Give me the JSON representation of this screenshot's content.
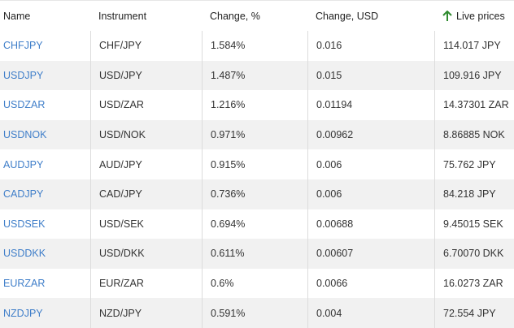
{
  "table": {
    "header": [
      "Name",
      "Instrument",
      "Change, %",
      "Change, USD",
      "Live prices"
    ],
    "rows": [
      [
        "CHFJPY",
        "CHF/JPY",
        "1.584%",
        "0.016",
        "114.017 JPY"
      ],
      [
        "USDJPY",
        "USD/JPY",
        "1.487%",
        "0.015",
        "109.916 JPY"
      ],
      [
        "USDZAR",
        "USD/ZAR",
        "1.216%",
        "0.01194",
        "14.37301 ZAR"
      ],
      [
        "USDNOK",
        "USD/NOK",
        "0.971%",
        "0.00962",
        "8.86885 NOK"
      ],
      [
        "AUDJPY",
        "AUD/JPY",
        "0.915%",
        "0.006",
        "75.762 JPY"
      ],
      [
        "CADJPY",
        "CAD/JPY",
        "0.736%",
        "0.006",
        "84.218 JPY"
      ],
      [
        "USDSEK",
        "USD/SEK",
        "0.694%",
        "0.00688",
        "9.45015 SEK"
      ],
      [
        "USDDKK",
        "USD/DKK",
        "0.611%",
        "0.00607",
        "6.70070 DKK"
      ],
      [
        "EURZAR",
        "EUR/ZAR",
        "0.6%",
        "0.0066",
        "16.0273 ZAR"
      ],
      [
        "NZDJPY",
        "NZD/JPY",
        "0.591%",
        "0.004",
        "72.554 JPY"
      ]
    ]
  }
}
